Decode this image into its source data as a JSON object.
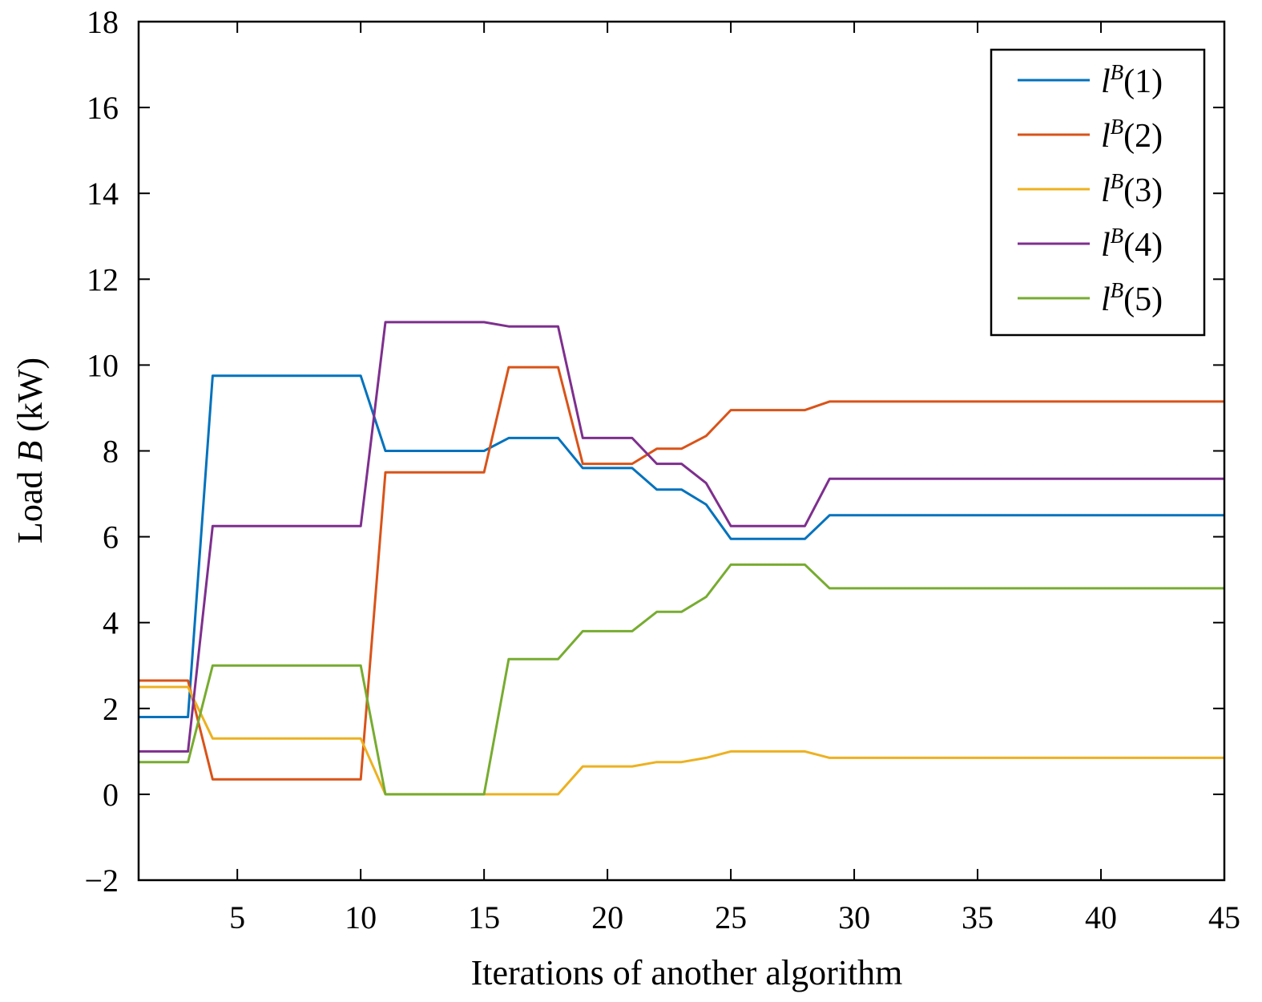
{
  "chart_data": {
    "type": "line",
    "xlabel": "Iterations of another algorithm",
    "ylabel": {
      "prefix": "Load ",
      "italic": "B",
      "suffix": " (kW)"
    },
    "xlim": [
      1,
      45
    ],
    "ylim": [
      -2,
      18
    ],
    "xticks": [
      5,
      10,
      15,
      20,
      25,
      30,
      35,
      40,
      45
    ],
    "yticks": [
      -2,
      0,
      2,
      4,
      6,
      8,
      10,
      12,
      14,
      16,
      18
    ],
    "xtick_labels": [
      "5",
      "10",
      "15",
      "20",
      "25",
      "30",
      "35",
      "40",
      "45"
    ],
    "ytick_labels": [
      "−2",
      "0",
      "2",
      "4",
      "6",
      "8",
      "10",
      "12",
      "14",
      "16",
      "18"
    ],
    "grid": false,
    "legend_position": "top-right",
    "series": [
      {
        "name": "l^B(1)",
        "label_base": "l",
        "label_sup": "B",
        "label_arg": "(1)",
        "color": "#0072BD",
        "x": [
          1,
          3,
          4,
          10,
          11,
          15,
          16,
          18,
          19,
          21,
          22,
          23,
          24,
          25,
          28,
          29,
          45
        ],
        "y": [
          1.8,
          1.8,
          9.75,
          9.75,
          8.0,
          8.0,
          8.3,
          8.3,
          7.6,
          7.6,
          7.1,
          7.1,
          6.75,
          5.95,
          5.95,
          6.5,
          6.5
        ]
      },
      {
        "name": "l^B(2)",
        "label_base": "l",
        "label_sup": "B",
        "label_arg": "(2)",
        "color": "#D95319",
        "x": [
          1,
          3,
          4,
          10,
          11,
          15,
          16,
          18,
          19,
          21,
          22,
          23,
          24,
          25,
          28,
          29,
          45
        ],
        "y": [
          2.65,
          2.65,
          0.35,
          0.35,
          7.5,
          7.5,
          9.95,
          9.95,
          7.7,
          7.7,
          8.05,
          8.05,
          8.35,
          8.95,
          8.95,
          9.15,
          9.15
        ]
      },
      {
        "name": "l^B(3)",
        "label_base": "l",
        "label_sup": "B",
        "label_arg": "(3)",
        "color": "#EDB120",
        "x": [
          1,
          3,
          4,
          10,
          11,
          18,
          19,
          21,
          22,
          23,
          24,
          25,
          28,
          29,
          45
        ],
        "y": [
          2.5,
          2.5,
          1.3,
          1.3,
          0.0,
          0.0,
          0.65,
          0.65,
          0.75,
          0.75,
          0.85,
          1.0,
          1.0,
          0.85,
          0.85
        ]
      },
      {
        "name": "l^B(4)",
        "label_base": "l",
        "label_sup": "B",
        "label_arg": "(4)",
        "color": "#7E2F8E",
        "x": [
          1,
          3,
          4,
          10,
          11,
          15,
          16,
          18,
          19,
          21,
          22,
          23,
          24,
          25,
          28,
          29,
          45
        ],
        "y": [
          1.0,
          1.0,
          6.25,
          6.25,
          11.0,
          11.0,
          10.9,
          10.9,
          8.3,
          8.3,
          7.7,
          7.7,
          7.25,
          6.25,
          6.25,
          7.35,
          7.35
        ]
      },
      {
        "name": "l^B(5)",
        "label_base": "l",
        "label_sup": "B",
        "label_arg": "(5)",
        "color": "#77AC30",
        "x": [
          1,
          3,
          4,
          10,
          11,
          15,
          16,
          18,
          19,
          21,
          22,
          23,
          24,
          25,
          28,
          29,
          45
        ],
        "y": [
          0.75,
          0.75,
          3.0,
          3.0,
          0.0,
          0.0,
          3.15,
          3.15,
          3.8,
          3.8,
          4.25,
          4.25,
          4.6,
          5.35,
          5.35,
          4.8,
          4.8
        ]
      }
    ]
  }
}
